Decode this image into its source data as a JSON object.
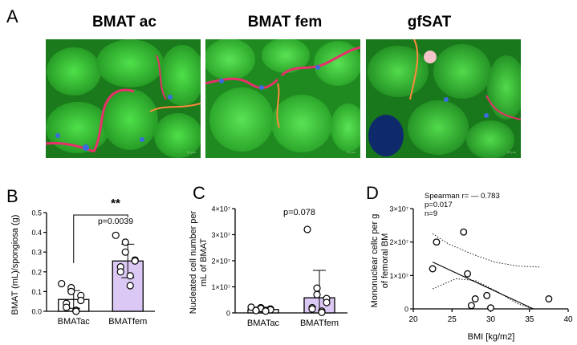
{
  "panel_a": {
    "letter": "A",
    "images": [
      {
        "title": "BMAT ac",
        "scale_label": "20 µm"
      },
      {
        "title": "BMAT fem",
        "scale_label": "20 µm"
      },
      {
        "title": "gfSAT",
        "scale_label": "20 µm"
      }
    ]
  },
  "colors": {
    "bar_fill_fem": "#dcc8f5",
    "bar_fill_ac": "#ffffff",
    "fluor_green": "#3ec43a",
    "fluor_red": "#e8306a",
    "fluor_blue": "#3a6be0"
  },
  "chart_data": [
    {
      "panel": "B",
      "type": "bar",
      "categories": [
        "BMATac",
        "BMATfem"
      ],
      "values": [
        0.06,
        0.255
      ],
      "error": [
        0.045,
        0.085
      ],
      "points": [
        [
          0.14,
          0.12,
          0.1,
          0.08,
          0.055,
          0.04,
          0.02,
          0.005,
          0.0
        ],
        [
          0.385,
          0.35,
          0.3,
          0.26,
          0.255,
          0.225,
          0.2,
          0.18,
          0.13
        ]
      ],
      "ylabel": "BMAT (mL)/spongiosa (g)",
      "ylim": [
        0,
        0.5
      ],
      "yticks": [
        "0.0",
        "0.1",
        "0.2",
        "0.3",
        "0.4",
        "0.5"
      ],
      "annotation_stars": "**",
      "annotation_p": "p=0.0039"
    },
    {
      "panel": "C",
      "type": "bar",
      "categories": [
        "BMATac",
        "BMATfem"
      ],
      "values": [
        1300000,
        5800000
      ],
      "error": [
        900000,
        10500000
      ],
      "points": [
        [
          2200000,
          2000000,
          1700000,
          1500000,
          1200000,
          1000000,
          900000,
          800000,
          700000
        ],
        [
          32000000,
          9500000,
          7000000,
          5500000,
          4000000,
          2000000,
          1500000,
          700000,
          200000
        ]
      ],
      "ylabel_line1": "Nucleated cell number per",
      "ylabel_line2": "mL of BMAT",
      "ylim": [
        0,
        40000000
      ],
      "yticks": [
        "0",
        "1×10⁷",
        "2×10⁷",
        "3×10⁷",
        "4×10⁷"
      ],
      "annotation_p": "p=0.078"
    },
    {
      "panel": "D",
      "type": "scatter",
      "x": [
        22.5,
        23.0,
        26.5,
        27.0,
        27.5,
        28.0,
        29.5,
        30.0,
        37.5
      ],
      "y": [
        12000000,
        20000000,
        23000000,
        10500000,
        1000000,
        3000000,
        4000000,
        300000,
        3000000
      ],
      "fit_line": {
        "x": [
          22.5,
          35.5
        ],
        "y": [
          14000000,
          0
        ]
      },
      "ci_upper": {
        "x": [
          22.5,
          24.5,
          27.5,
          30.5,
          33.5,
          36.5
        ],
        "y": [
          22500000,
          19500000,
          16500000,
          14000000,
          12800000,
          12500000
        ]
      },
      "ci_lower": {
        "x": [
          22.5,
          25.5,
          28.0,
          31.0,
          33.5,
          35.5
        ],
        "y": [
          6000000,
          9000000,
          8500000,
          5000000,
          1500000,
          0
        ]
      },
      "xlabel": "BMI [kg/m2]",
      "ylabel_line1": "Mononuclear cellc per g",
      "ylabel_line2": "of femoral BM",
      "xlim": [
        20,
        40
      ],
      "ylim": [
        0,
        30000000
      ],
      "xticks": [
        "20",
        "25",
        "30",
        "35",
        "40"
      ],
      "yticks": [
        "0",
        "1×10⁷",
        "2×10⁷",
        "3×10⁷"
      ],
      "stats": [
        "Spearman r= —  0.783",
        "p=0.017",
        "n=9"
      ]
    }
  ]
}
